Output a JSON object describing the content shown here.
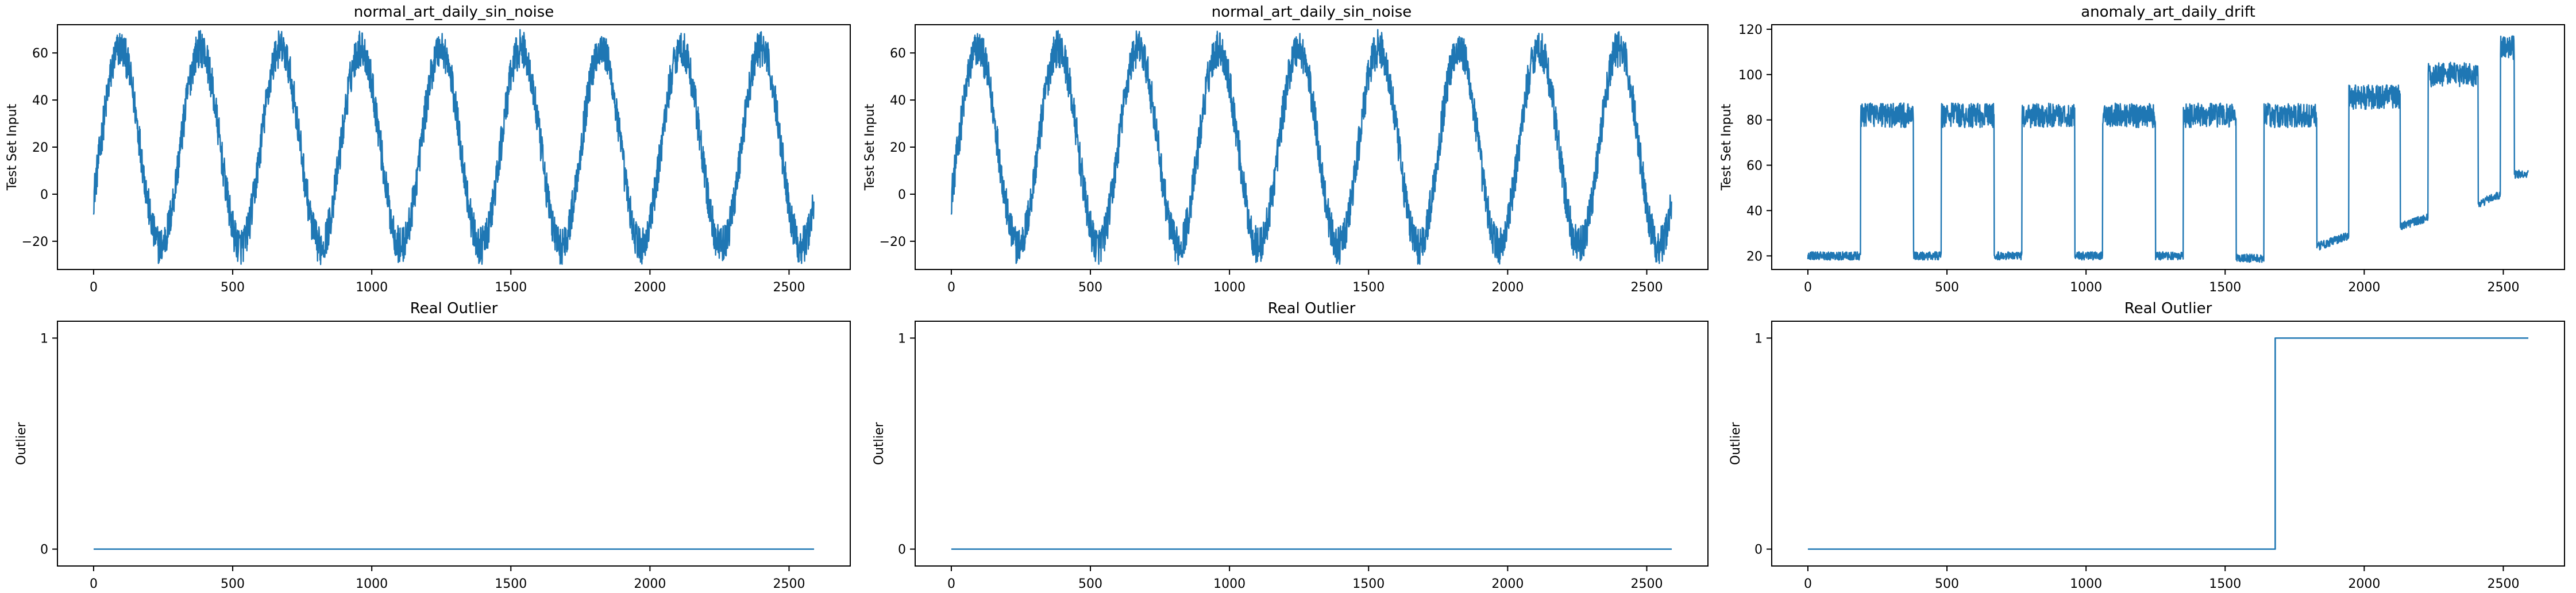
{
  "chart_data": [
    {
      "type": "line",
      "title": "normal_art_daily_sin_noise",
      "xlabel": "",
      "ylabel": "Test Set Input",
      "xlim": [
        -130,
        2720
      ],
      "ylim": [
        -32,
        72
      ],
      "xticks": [
        0,
        500,
        1000,
        1500,
        2000,
        2500
      ],
      "yticks": [
        -20,
        0,
        20,
        40,
        60
      ],
      "color": "#1f77b4",
      "grid": false,
      "signal": {
        "kind": "sine",
        "n": 2590,
        "offset": 20,
        "amplitude": 42,
        "period": 288,
        "phase_start": -0.5236,
        "noise": 8
      },
      "series": []
    },
    {
      "type": "line",
      "title": "normal_art_daily_sin_noise",
      "xlabel": "",
      "ylabel": "Test Set Input",
      "xlim": [
        -130,
        2720
      ],
      "ylim": [
        -32,
        72
      ],
      "xticks": [
        0,
        500,
        1000,
        1500,
        2000,
        2500
      ],
      "yticks": [
        -20,
        0,
        20,
        40,
        60
      ],
      "color": "#1f77b4",
      "grid": false,
      "signal": {
        "kind": "sine",
        "n": 2590,
        "offset": 20,
        "amplitude": 42,
        "period": 288,
        "phase_start": -0.5236,
        "noise": 8
      },
      "series": []
    },
    {
      "type": "line",
      "title": "anomaly_art_daily_drift",
      "xlabel": "",
      "ylabel": "Test Set Input",
      "xlim": [
        -130,
        2720
      ],
      "ylim": [
        14,
        122
      ],
      "xticks": [
        0,
        500,
        1000,
        1500,
        2000,
        2500
      ],
      "yticks": [
        20,
        40,
        60,
        80,
        100,
        120
      ],
      "color": "#1f77b4",
      "grid": false,
      "signal": {
        "kind": "square_drift",
        "n": 2590,
        "noise": 3,
        "segments": [
          {
            "start": 0,
            "end": 190,
            "level": 20
          },
          {
            "start": 190,
            "end": 380,
            "level": 82
          },
          {
            "start": 380,
            "end": 480,
            "level": 20
          },
          {
            "start": 480,
            "end": 670,
            "level": 82
          },
          {
            "start": 670,
            "end": 770,
            "level": 20
          },
          {
            "start": 770,
            "end": 960,
            "level": 82
          },
          {
            "start": 960,
            "end": 1060,
            "level": 20
          },
          {
            "start": 1060,
            "end": 1250,
            "level": 82
          },
          {
            "start": 1250,
            "end": 1350,
            "level": 20
          },
          {
            "start": 1350,
            "end": 1540,
            "level": 82
          },
          {
            "start": 1540,
            "end": 1640,
            "level": 19
          },
          {
            "start": 1640,
            "end": 1830,
            "level": 82
          },
          {
            "start": 1830,
            "end": 1945,
            "level": 24,
            "level_end": 29
          },
          {
            "start": 1945,
            "end": 2130,
            "level": 90
          },
          {
            "start": 2130,
            "end": 2230,
            "level": 33,
            "level_end": 37
          },
          {
            "start": 2230,
            "end": 2410,
            "level": 100
          },
          {
            "start": 2410,
            "end": 2490,
            "level": 43,
            "level_end": 47
          },
          {
            "start": 2490,
            "end": 2590,
            "level": 112
          }
        ],
        "tail": {
          "start": 2540,
          "level": 56
        }
      },
      "series": []
    },
    {
      "type": "line",
      "title": "Real Outlier",
      "xlabel": "",
      "ylabel": "Outlier",
      "xlim": [
        -130,
        2720
      ],
      "ylim": [
        -0.08,
        1.08
      ],
      "xticks": [
        0,
        500,
        1000,
        1500,
        2000,
        2500
      ],
      "yticks": [
        0,
        1
      ],
      "color": "#1f77b4",
      "grid": false,
      "points": [
        [
          0,
          0
        ],
        [
          2590,
          0
        ]
      ],
      "series": []
    },
    {
      "type": "line",
      "title": "Real Outlier",
      "xlabel": "",
      "ylabel": "Outlier",
      "xlim": [
        -130,
        2720
      ],
      "ylim": [
        -0.08,
        1.08
      ],
      "xticks": [
        0,
        500,
        1000,
        1500,
        2000,
        2500
      ],
      "yticks": [
        0,
        1
      ],
      "color": "#1f77b4",
      "grid": false,
      "points": [
        [
          0,
          0
        ],
        [
          2590,
          0
        ]
      ],
      "series": []
    },
    {
      "type": "line",
      "title": "Real Outlier",
      "xlabel": "",
      "ylabel": "Outlier",
      "xlim": [
        -130,
        2720
      ],
      "ylim": [
        -0.08,
        1.08
      ],
      "xticks": [
        0,
        500,
        1000,
        1500,
        2000,
        2500
      ],
      "yticks": [
        0,
        1
      ],
      "color": "#1f77b4",
      "grid": false,
      "points": [
        [
          0,
          0
        ],
        [
          1680,
          0
        ],
        [
          1680,
          1
        ],
        [
          2590,
          1
        ]
      ],
      "series": []
    }
  ]
}
